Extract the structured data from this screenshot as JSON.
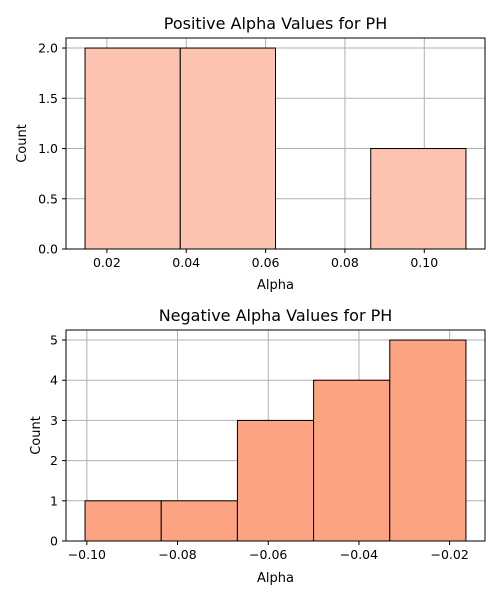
{
  "chart_data": [
    {
      "type": "bar",
      "title": "Positive Alpha Values for PH",
      "xlabel": "Alpha",
      "ylabel": "Count",
      "bins": [
        {
          "x0": 0.0145,
          "x1": 0.0385,
          "count": 2
        },
        {
          "x0": 0.0385,
          "x1": 0.0625,
          "count": 2
        },
        {
          "x0": 0.0625,
          "x1": 0.0865,
          "count": 0
        },
        {
          "x0": 0.0865,
          "x1": 0.1105,
          "count": 1
        }
      ],
      "xlim": [
        0.0097,
        0.1153
      ],
      "ylim": [
        0,
        2.1
      ],
      "xticks": [
        0.02,
        0.04,
        0.06,
        0.08,
        0.1
      ],
      "xtick_labels": [
        "0.02",
        "0.04",
        "0.06",
        "0.08",
        "0.10"
      ],
      "yticks": [
        0,
        0.5,
        1.0,
        1.5,
        2.0
      ],
      "ytick_labels": [
        "0.0",
        "0.5",
        "1.0",
        "1.5",
        "2.0"
      ],
      "grid": true,
      "bar_color": "#fcc4b0"
    },
    {
      "type": "bar",
      "title": "Negative Alpha Values for PH",
      "xlabel": "Alpha",
      "ylabel": "Count",
      "bins": [
        {
          "x0": -0.1004,
          "x1": -0.0836,
          "count": 1
        },
        {
          "x0": -0.0836,
          "x1": -0.0668,
          "count": 1
        },
        {
          "x0": -0.0668,
          "x1": -0.05,
          "count": 3
        },
        {
          "x0": -0.05,
          "x1": -0.0332,
          "count": 4
        },
        {
          "x0": -0.0332,
          "x1": -0.0164,
          "count": 5
        }
      ],
      "xlim": [
        -0.1046,
        -0.0122
      ],
      "ylim": [
        0,
        5.25
      ],
      "xticks": [
        -0.1,
        -0.08,
        -0.06,
        -0.04,
        -0.02
      ],
      "xtick_labels": [
        "−0.10",
        "−0.08",
        "−0.06",
        "−0.04",
        "−0.02"
      ],
      "yticks": [
        0,
        1,
        2,
        3,
        4,
        5
      ],
      "ytick_labels": [
        "0",
        "1",
        "2",
        "3",
        "4",
        "5"
      ],
      "grid": true,
      "bar_color": "#fca482"
    }
  ]
}
